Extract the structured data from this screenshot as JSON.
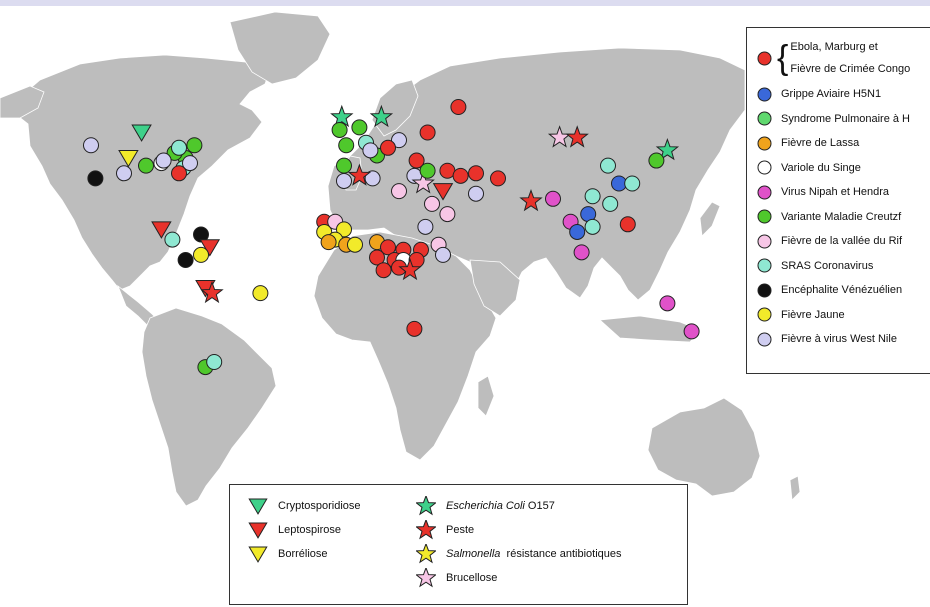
{
  "legend_right": {
    "items": [
      {
        "key": "ebola",
        "lines": [
          "Ebola, Marburg et",
          "Fièvre de Crimée Congo"
        ],
        "color": "#e8322b",
        "shape": "circle"
      },
      {
        "key": "h5n1",
        "label": "Grippe Aviaire H5N1",
        "color": "#3a68d9",
        "shape": "circle"
      },
      {
        "key": "hps",
        "label": "Syndrome Pulmonaire à H",
        "color": "#5fd86e",
        "shape": "circle"
      },
      {
        "key": "lassa",
        "label": "Fièvre de Lassa",
        "color": "#f0a31c",
        "shape": "circle"
      },
      {
        "key": "monkeypox",
        "label": "Variole du Singe",
        "color": "#ffffff",
        "shape": "circle"
      },
      {
        "key": "nipah",
        "label": "Virus Nipah et Hendra",
        "color": "#e052c9",
        "shape": "circle"
      },
      {
        "key": "vcjd",
        "label": "Variante Maladie Creutzf",
        "color": "#4fc82c",
        "shape": "circle"
      },
      {
        "key": "rift",
        "label": "Fièvre de la vallée du Rif",
        "color": "#f7c6e6",
        "shape": "circle"
      },
      {
        "key": "sars",
        "label": "SRAS Coronavirus",
        "color": "#8fe8d2",
        "shape": "circle"
      },
      {
        "key": "vee",
        "label": "Encéphalite Vénézuélien",
        "color": "#111111",
        "shape": "circle"
      },
      {
        "key": "yellow",
        "label": "Fièvre Jaune",
        "color": "#f2ea2a",
        "shape": "circle"
      },
      {
        "key": "wnv",
        "label": "Fièvre à virus West Nile",
        "color": "#cfcdf0",
        "shape": "circle"
      }
    ]
  },
  "legend_bottom": {
    "items": [
      {
        "key": "crypto",
        "parts": [
          {
            "t": "Cryptosporidiose",
            "i": false
          }
        ],
        "color": "#3ed18a",
        "shape": "triangle"
      },
      {
        "key": "lepto",
        "parts": [
          {
            "t": "Leptospirose",
            "i": false
          }
        ],
        "color": "#e8322b",
        "shape": "triangle"
      },
      {
        "key": "borre",
        "parts": [
          {
            "t": "Borréliose",
            "i": false
          }
        ],
        "color": "#f2ea2a",
        "shape": "triangle"
      },
      {
        "key": "ecoli",
        "parts": [
          {
            "t": "Escherichia Coli",
            "i": true
          },
          {
            "t": " O157",
            "i": false
          }
        ],
        "color": "#3ed18a",
        "shape": "star"
      },
      {
        "key": "peste",
        "parts": [
          {
            "t": "Peste",
            "i": false
          }
        ],
        "color": "#e8322b",
        "shape": "star"
      },
      {
        "key": "salmo",
        "parts": [
          {
            "t": "Salmonella",
            "i": true
          },
          {
            "t": "  résistance antibiotiques",
            "i": false
          }
        ],
        "color": "#f2ea2a",
        "shape": "star"
      },
      {
        "key": "bruce",
        "parts": [
          {
            "t": "Brucellose",
            "i": false
          }
        ],
        "color": "#f7c6e6",
        "shape": "star"
      }
    ]
  },
  "colors": {
    "land": "#bdbdbd",
    "land_stroke": "#ffffff",
    "ocean": "#ffffff",
    "marker_stroke": "#222222"
  },
  "markers": [
    {
      "t": "vcjd",
      "x": -73,
      "y": 45
    },
    {
      "t": "vcjd",
      "x": -77,
      "y": 40
    },
    {
      "t": "vcjd",
      "x": -82,
      "y": 42
    },
    {
      "t": "vcjd",
      "x": -95,
      "y": 37
    },
    {
      "t": "sars",
      "x": -80,
      "y": 44
    },
    {
      "t": "sars",
      "x": -78,
      "y": 36
    },
    {
      "t": "monkeypox",
      "x": -88,
      "y": 38
    },
    {
      "t": "wnv",
      "x": -120,
      "y": 45
    },
    {
      "t": "wnv",
      "x": -87,
      "y": 39
    },
    {
      "t": "wnv",
      "x": -75,
      "y": 38
    },
    {
      "t": "wnv",
      "x": -105,
      "y": 34
    },
    {
      "t": "ebola",
      "x": -80,
      "y": 34
    },
    {
      "t": "vee",
      "x": -118,
      "y": 32
    },
    {
      "t": "crypto",
      "x": -97,
      "y": 50
    },
    {
      "t": "borre",
      "x": -103,
      "y": 40
    },
    {
      "t": "lepto",
      "x": -88,
      "y": 12
    },
    {
      "t": "sars",
      "x": -83,
      "y": 8
    },
    {
      "t": "vee",
      "x": -70,
      "y": 10
    },
    {
      "t": "vee",
      "x": -77,
      "y": 0
    },
    {
      "t": "lepto",
      "x": -66,
      "y": 5
    },
    {
      "t": "yellow",
      "x": -70,
      "y": 2
    },
    {
      "t": "lepto",
      "x": -68,
      "y": -11
    },
    {
      "t": "peste",
      "x": -65,
      "y": -13
    },
    {
      "t": "yellow",
      "x": -43,
      "y": -13
    },
    {
      "t": "vcjd",
      "x": -68,
      "y": -42
    },
    {
      "t": "sars",
      "x": -64,
      "y": -40
    },
    {
      "t": "ecoli",
      "x": -6,
      "y": 56
    },
    {
      "t": "ecoli",
      "x": 12,
      "y": 56
    },
    {
      "t": "vcjd",
      "x": -7,
      "y": 51
    },
    {
      "t": "vcjd",
      "x": 2,
      "y": 52
    },
    {
      "t": "vcjd",
      "x": -4,
      "y": 45
    },
    {
      "t": "vcjd",
      "x": -5,
      "y": 37
    },
    {
      "t": "vcjd",
      "x": 10,
      "y": 41
    },
    {
      "t": "sars",
      "x": 5,
      "y": 46
    },
    {
      "t": "wnv",
      "x": 7,
      "y": 43
    },
    {
      "t": "wnv",
      "x": 20,
      "y": 47
    },
    {
      "t": "wnv",
      "x": -5,
      "y": 31
    },
    {
      "t": "wnv",
      "x": 8,
      "y": 32
    },
    {
      "t": "ebola",
      "x": 15,
      "y": 44
    },
    {
      "t": "ebola",
      "x": 33,
      "y": 50
    },
    {
      "t": "ebola",
      "x": 28,
      "y": 39
    },
    {
      "t": "peste",
      "x": 2,
      "y": 33
    },
    {
      "t": "wnv",
      "x": 27,
      "y": 33
    },
    {
      "t": "bruce",
      "x": 31,
      "y": 30
    },
    {
      "t": "vcjd",
      "x": 33,
      "y": 35
    },
    {
      "t": "rift",
      "x": 20,
      "y": 27
    },
    {
      "t": "ebola",
      "x": 42,
      "y": 35
    },
    {
      "t": "ebola",
      "x": 48,
      "y": 33
    },
    {
      "t": "ebola",
      "x": 55,
      "y": 34
    },
    {
      "t": "ebola",
      "x": 65,
      "y": 32
    },
    {
      "t": "lepto",
      "x": 40,
      "y": 27
    },
    {
      "t": "wnv",
      "x": 55,
      "y": 26
    },
    {
      "t": "rift",
      "x": 35,
      "y": 22
    },
    {
      "t": "rift",
      "x": 42,
      "y": 18
    },
    {
      "t": "wnv",
      "x": 32,
      "y": 13
    },
    {
      "t": "rift",
      "x": 38,
      "y": 6
    },
    {
      "t": "wnv",
      "x": 40,
      "y": 2
    },
    {
      "t": "ebola",
      "x": -14,
      "y": 15
    },
    {
      "t": "yellow",
      "x": -14,
      "y": 11
    },
    {
      "t": "rift",
      "x": -9,
      "y": 15
    },
    {
      "t": "yellow",
      "x": -5,
      "y": 12
    },
    {
      "t": "yellow",
      "x": -9,
      "y": 8
    },
    {
      "t": "lassa",
      "x": -12,
      "y": 7
    },
    {
      "t": "lassa",
      "x": -4,
      "y": 6
    },
    {
      "t": "yellow",
      "x": 0,
      "y": 6
    },
    {
      "t": "lassa",
      "x": 10,
      "y": 7
    },
    {
      "t": "ebola",
      "x": 15,
      "y": 5
    },
    {
      "t": "ebola",
      "x": 22,
      "y": 4
    },
    {
      "t": "ebola",
      "x": 30,
      "y": 4
    },
    {
      "t": "ebola",
      "x": 10,
      "y": 1
    },
    {
      "t": "ebola",
      "x": 18,
      "y": 0
    },
    {
      "t": "monkeypox",
      "x": 22,
      "y": 0
    },
    {
      "t": "ebola",
      "x": 28,
      "y": 0
    },
    {
      "t": "ebola",
      "x": 13,
      "y": -4
    },
    {
      "t": "ebola",
      "x": 20,
      "y": -3
    },
    {
      "t": "peste",
      "x": 25,
      "y": -4
    },
    {
      "t": "ebola",
      "x": 27,
      "y": -27
    },
    {
      "t": "ebola",
      "x": 47,
      "y": 60
    },
    {
      "t": "bruce",
      "x": 93,
      "y": 48
    },
    {
      "t": "peste",
      "x": 101,
      "y": 48
    },
    {
      "t": "ecoli",
      "x": 142,
      "y": 43
    },
    {
      "t": "vcjd",
      "x": 137,
      "y": 39
    },
    {
      "t": "peste",
      "x": 80,
      "y": 23
    },
    {
      "t": "nipah",
      "x": 90,
      "y": 24
    },
    {
      "t": "sars",
      "x": 115,
      "y": 37
    },
    {
      "t": "h5n1",
      "x": 120,
      "y": 30
    },
    {
      "t": "sars",
      "x": 126,
      "y": 30
    },
    {
      "t": "sars",
      "x": 108,
      "y": 25
    },
    {
      "t": "sars",
      "x": 116,
      "y": 22
    },
    {
      "t": "h5n1",
      "x": 106,
      "y": 18
    },
    {
      "t": "nipah",
      "x": 98,
      "y": 15
    },
    {
      "t": "h5n1",
      "x": 101,
      "y": 11
    },
    {
      "t": "sars",
      "x": 108,
      "y": 13
    },
    {
      "t": "ebola",
      "x": 124,
      "y": 14
    },
    {
      "t": "nipah",
      "x": 103,
      "y": 3
    },
    {
      "t": "nipah",
      "x": 142,
      "y": -17
    },
    {
      "t": "nipah",
      "x": 153,
      "y": -28
    }
  ]
}
